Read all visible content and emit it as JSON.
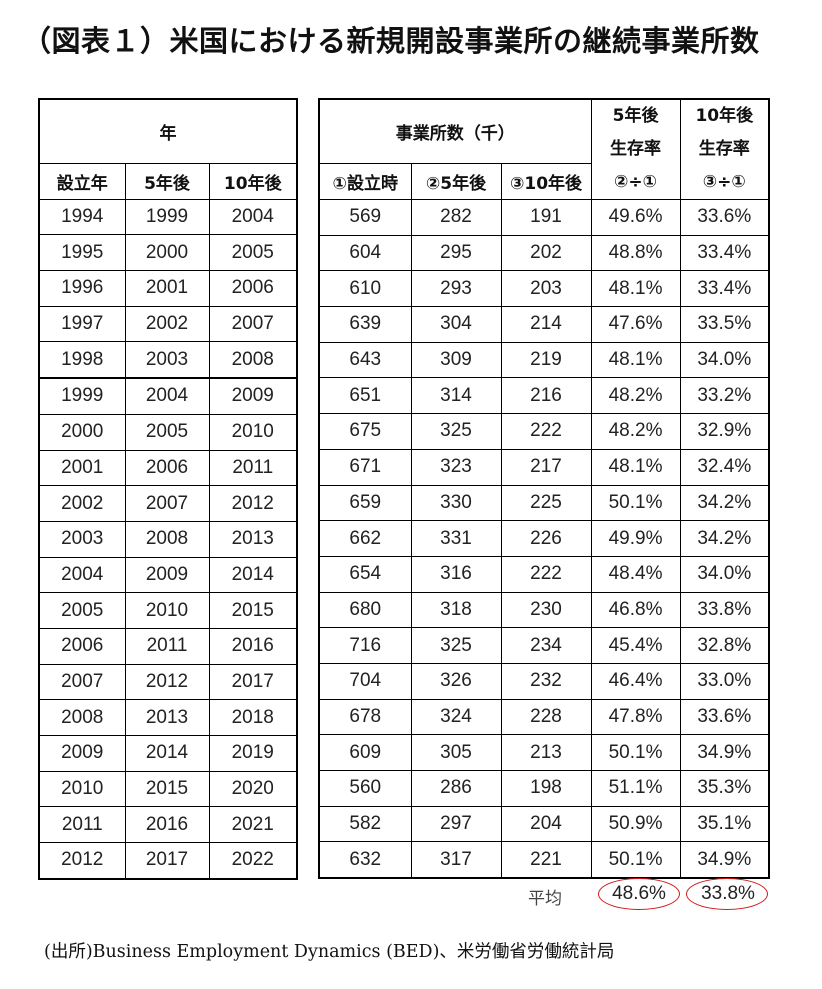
{
  "title": "（図表１）米国における新規開設事業所の継続事業所数",
  "left_table": {
    "group_header": "年",
    "columns": [
      "設立年",
      "5年後",
      "10年後"
    ],
    "rows": [
      [
        "1994",
        "1999",
        "2004"
      ],
      [
        "1995",
        "2000",
        "2005"
      ],
      [
        "1996",
        "2001",
        "2006"
      ],
      [
        "1997",
        "2002",
        "2007"
      ],
      [
        "1998",
        "2003",
        "2008"
      ],
      [
        "1999",
        "2004",
        "2009"
      ],
      [
        "2000",
        "2005",
        "2010"
      ],
      [
        "2001",
        "2006",
        "2011"
      ],
      [
        "2002",
        "2007",
        "2012"
      ],
      [
        "2003",
        "2008",
        "2013"
      ],
      [
        "2004",
        "2009",
        "2014"
      ],
      [
        "2005",
        "2010",
        "2015"
      ],
      [
        "2006",
        "2011",
        "2016"
      ],
      [
        "2007",
        "2012",
        "2017"
      ],
      [
        "2008",
        "2013",
        "2018"
      ],
      [
        "2009",
        "2014",
        "2019"
      ],
      [
        "2010",
        "2015",
        "2020"
      ],
      [
        "2011",
        "2016",
        "2021"
      ],
      [
        "2012",
        "2017",
        "2022"
      ]
    ]
  },
  "right_table": {
    "group_header": "事業所数（千）",
    "survival5_header_line1": "5年後",
    "survival5_header_line2": "生存率",
    "survival10_header_line1": "10年後",
    "survival10_header_line2": "生存率",
    "columns": [
      "①設立時",
      "②5年後",
      "③10年後",
      "②÷①",
      "③÷①"
    ],
    "rows": [
      [
        "569",
        "282",
        "191",
        "49.6%",
        "33.6%"
      ],
      [
        "604",
        "295",
        "202",
        "48.8%",
        "33.4%"
      ],
      [
        "610",
        "293",
        "203",
        "48.1%",
        "33.4%"
      ],
      [
        "639",
        "304",
        "214",
        "47.6%",
        "33.5%"
      ],
      [
        "643",
        "309",
        "219",
        "48.1%",
        "34.0%"
      ],
      [
        "651",
        "314",
        "216",
        "48.2%",
        "33.2%"
      ],
      [
        "675",
        "325",
        "222",
        "48.2%",
        "32.9%"
      ],
      [
        "671",
        "323",
        "217",
        "48.1%",
        "32.4%"
      ],
      [
        "659",
        "330",
        "225",
        "50.1%",
        "34.2%"
      ],
      [
        "662",
        "331",
        "226",
        "49.9%",
        "34.2%"
      ],
      [
        "654",
        "316",
        "222",
        "48.4%",
        "34.0%"
      ],
      [
        "680",
        "318",
        "230",
        "46.8%",
        "33.8%"
      ],
      [
        "716",
        "325",
        "234",
        "45.4%",
        "32.8%"
      ],
      [
        "704",
        "326",
        "232",
        "46.4%",
        "33.0%"
      ],
      [
        "678",
        "324",
        "228",
        "47.8%",
        "33.6%"
      ],
      [
        "609",
        "305",
        "213",
        "50.1%",
        "34.9%"
      ],
      [
        "560",
        "286",
        "198",
        "51.1%",
        "35.3%"
      ],
      [
        "582",
        "297",
        "204",
        "50.9%",
        "35.1%"
      ],
      [
        "632",
        "317",
        "221",
        "50.1%",
        "34.9%"
      ]
    ]
  },
  "average": {
    "label": "平均",
    "survival5": "48.6%",
    "survival10": "33.8%",
    "highlight_color": "#d01818"
  },
  "source": "(出所)Business Employment Dynamics (BED)、米労働省労働統計局"
}
